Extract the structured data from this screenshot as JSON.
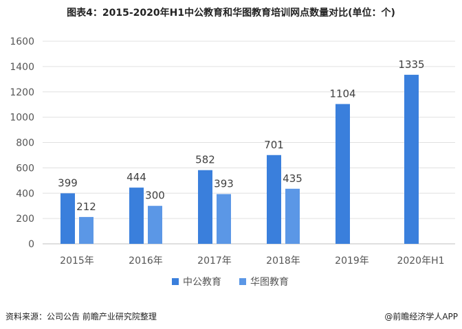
{
  "title": "图表4：2015-2020年H1中公教育和华图教育培训网点数量对比(单位：个)",
  "source_note": "资料来源：公司公告 前瞻产业研究院整理",
  "brand_note": "@前瞻经济学人APP",
  "chart_data": {
    "type": "bar",
    "categories": [
      "2015年",
      "2016年",
      "2017年",
      "2018年",
      "2019年",
      "2020年H1"
    ],
    "series": [
      {
        "name": "中公教育",
        "values": [
          399,
          444,
          582,
          701,
          1104,
          1335
        ],
        "color": "#3a7fdc"
      },
      {
        "name": "华图教育",
        "values": [
          212,
          300,
          393,
          435,
          null,
          null
        ],
        "color": "#5b97e6"
      }
    ],
    "ylim": [
      0,
      1600
    ],
    "yticks": [
      0,
      200,
      400,
      600,
      800,
      1000,
      1200,
      1400,
      1600
    ],
    "grid": true,
    "legend": "bottom"
  }
}
